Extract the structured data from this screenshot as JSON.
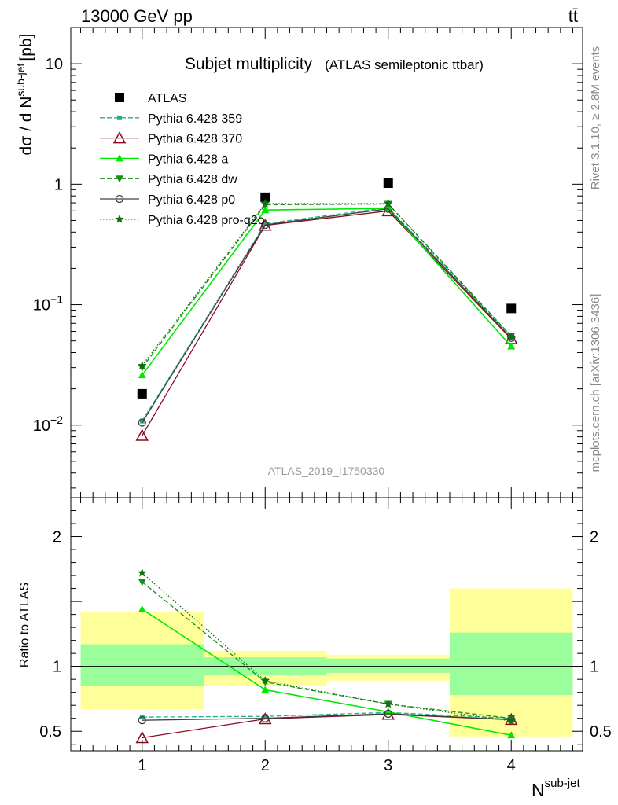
{
  "header": {
    "energy_label": "13000 GeV pp",
    "process_label": "tt̄"
  },
  "side_text": {
    "rivet": "Rivet 3.1.10, ≥ 2.8M events",
    "mcplots": "mcplots.cern.ch [arXiv:1306.3436]"
  },
  "colors": {
    "atlas": "#000000",
    "p359": "#20b090",
    "p370": "#8b0a1e",
    "pa": "#00e800",
    "pdw": "#189018",
    "pp0": "#404040",
    "pq2o": "#107010",
    "band_stat": "#9aff9a",
    "band_total": "#ffff99"
  },
  "chart_data": [
    {
      "type": "scatter",
      "title": "Subjet multiplicity",
      "subtitle": "(ATLAS semileptonic ttbar)",
      "analysis_label": "ATLAS_2019_I1750330",
      "xlabel": "N",
      "xlabel_sup": "sub-jet",
      "ylabel": "dσ / d N",
      "ylabel_sup": "sub-jet",
      "ylabel_unit": "[pb]",
      "yscale": "log",
      "xlim": [
        0.42,
        4.58
      ],
      "ylim": [
        0.0025,
        20
      ],
      "x": [
        1,
        2,
        3,
        4
      ],
      "series": [
        {
          "name": "ATLAS",
          "key": "atlas",
          "marker": "square",
          "line": "none",
          "values": [
            0.0182,
            0.78,
            1.02,
            0.093
          ]
        },
        {
          "name": "Pythia 6.428 359",
          "key": "p359",
          "marker": "smallsquare",
          "line": "dashed",
          "values": [
            0.0108,
            0.47,
            0.64,
            0.055
          ]
        },
        {
          "name": "Pythia 6.428 370",
          "key": "p370",
          "marker": "opentriangle",
          "line": "solid",
          "values": [
            0.0082,
            0.455,
            0.6,
            0.052
          ]
        },
        {
          "name": "Pythia 6.428 a",
          "key": "pa",
          "marker": "triangle",
          "line": "solid",
          "values": [
            0.026,
            0.61,
            0.63,
            0.045
          ]
        },
        {
          "name": "Pythia 6.428 dw",
          "key": "pdw",
          "marker": "invtriangle",
          "line": "dashed",
          "values": [
            0.03,
            0.675,
            0.685,
            0.055
          ]
        },
        {
          "name": "Pythia 6.428 p0",
          "key": "pp0",
          "marker": "opencircle",
          "line": "solid",
          "values": [
            0.0105,
            0.46,
            0.625,
            0.053
          ]
        },
        {
          "name": "Pythia 6.428 pro-q2o",
          "key": "pq2o",
          "marker": "star",
          "line": "dotted",
          "values": [
            0.0312,
            0.69,
            0.69,
            0.053
          ]
        }
      ],
      "y_ticks": [
        {
          "value": 0.01,
          "label": "10",
          "exp": "−2"
        },
        {
          "value": 0.1,
          "label": "10",
          "exp": "−1"
        },
        {
          "value": 1,
          "label": "1",
          "exp": ""
        },
        {
          "value": 10,
          "label": "10",
          "exp": ""
        }
      ]
    },
    {
      "type": "line",
      "ylabel": "Ratio to ATLAS",
      "xlim": [
        0.42,
        4.58
      ],
      "ylim": [
        0.35,
        2.3
      ],
      "x": [
        1,
        2,
        3,
        4
      ],
      "x_ticks": [
        "1",
        "2",
        "3",
        "4"
      ],
      "y_ticks": [
        {
          "value": 0.5,
          "label": "0.5"
        },
        {
          "value": 1,
          "label": "1"
        },
        {
          "value": 2,
          "label": "2"
        }
      ],
      "stat_band": [
        [
          0.85,
          1.17
        ],
        [
          0.93,
          1.07
        ],
        [
          0.95,
          1.06
        ],
        [
          0.78,
          1.26
        ]
      ],
      "total_band": [
        [
          0.67,
          1.42
        ],
        [
          0.85,
          1.12
        ],
        [
          0.89,
          1.09
        ],
        [
          0.46,
          1.6
        ]
      ],
      "series": [
        {
          "name": "Pythia 6.428 359",
          "key": "p359",
          "values": [
            0.61,
            0.615,
            0.645,
            0.6
          ]
        },
        {
          "name": "Pythia 6.428 370",
          "key": "p370",
          "values": [
            0.45,
            0.595,
            0.63,
            0.59
          ]
        },
        {
          "name": "Pythia 6.428 a",
          "key": "pa",
          "values": [
            1.44,
            0.82,
            0.65,
            0.47
          ]
        },
        {
          "name": "Pythia 6.428 dw",
          "key": "pdw",
          "values": [
            1.65,
            0.88,
            0.71,
            0.6
          ]
        },
        {
          "name": "Pythia 6.428 p0",
          "key": "pp0",
          "values": [
            0.585,
            0.6,
            0.635,
            0.59
          ]
        },
        {
          "name": "Pythia 6.428 pro-q2o",
          "key": "pq2o",
          "values": [
            1.72,
            0.89,
            0.71,
            0.58
          ]
        }
      ]
    }
  ]
}
